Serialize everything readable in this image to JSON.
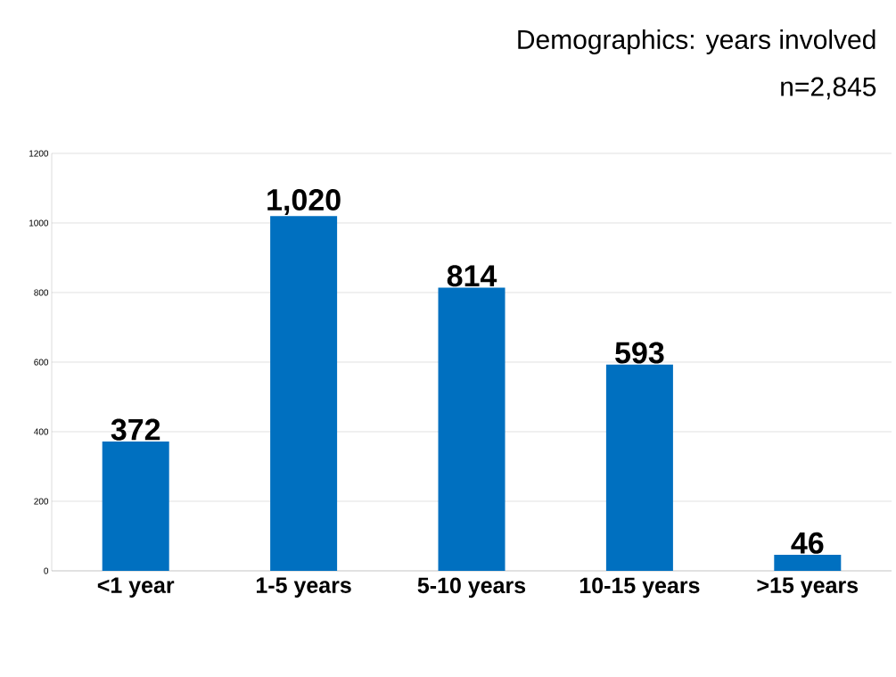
{
  "chart_data": {
    "type": "bar",
    "title": "Demographics:  years involved",
    "subtitle": "n=2,845",
    "categories": [
      "<1 year",
      "1-5 years",
      "5-10 years",
      "10-15 years",
      ">15 years"
    ],
    "values": [
      372,
      1020,
      814,
      593,
      46
    ],
    "value_labels": [
      "372",
      "1,020",
      "814",
      "593",
      "46"
    ],
    "color": "#0070c0",
    "ylim": [
      0,
      1200
    ],
    "yticks": [
      0,
      200,
      400,
      600,
      800,
      1000,
      1200
    ],
    "grid": "y"
  }
}
